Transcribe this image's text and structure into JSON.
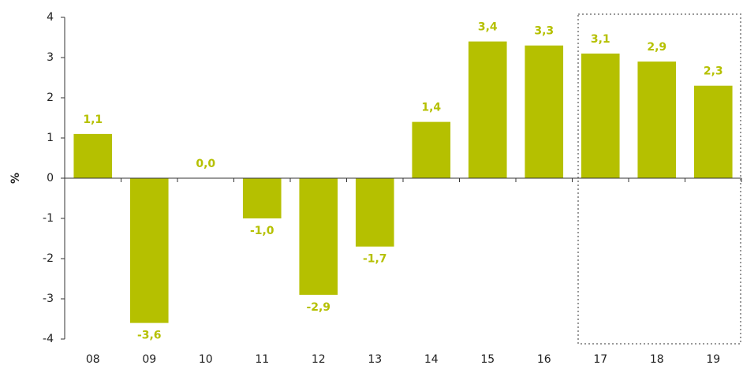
{
  "chart_data": {
    "type": "bar",
    "y_label": "%",
    "categories": [
      "08",
      "09",
      "10",
      "11",
      "12",
      "13",
      "14",
      "15",
      "16",
      "17",
      "18",
      "19"
    ],
    "values": [
      1.1,
      -3.6,
      0.0,
      -1.0,
      -2.9,
      -1.7,
      1.4,
      3.4,
      3.3,
      3.1,
      2.9,
      2.3
    ],
    "value_labels": [
      "1,1",
      "-3,6",
      "0,0",
      "-1,0",
      "-2,9",
      "-1,7",
      "1,4",
      "3,4",
      "3,3",
      "3,1",
      "2,9",
      "2,3"
    ],
    "color": "#b5c000",
    "ylim": [
      -4,
      4
    ],
    "yticks": [
      -4,
      -3,
      -2,
      -1,
      0,
      1,
      2,
      3,
      4
    ]
  }
}
